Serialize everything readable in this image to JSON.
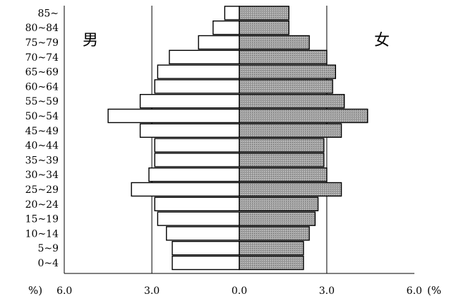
{
  "chart_data": {
    "type": "bar",
    "subtype": "population-pyramid",
    "categories": [
      "85~",
      "80~84",
      "75~79",
      "70~74",
      "65~69",
      "60~64",
      "55~59",
      "50~54",
      "45~49",
      "40~44",
      "35~39",
      "30~34",
      "25~29",
      "20~24",
      "15~19",
      "10~14",
      "5~9",
      "0~4"
    ],
    "series": [
      {
        "name": "男",
        "values": [
          0.5,
          0.9,
          1.4,
          2.4,
          2.8,
          2.9,
          3.4,
          4.5,
          3.4,
          2.9,
          2.9,
          3.1,
          3.7,
          2.9,
          2.8,
          2.5,
          2.3,
          2.3
        ]
      },
      {
        "name": "女",
        "values": [
          1.7,
          1.7,
          2.4,
          3.0,
          3.3,
          3.2,
          3.6,
          4.4,
          3.5,
          2.9,
          2.9,
          3.0,
          3.5,
          2.7,
          2.6,
          2.4,
          2.2,
          2.2
        ]
      }
    ],
    "xlim": [
      -6.0,
      6.0
    ],
    "xticks": [
      "6.0",
      "3.0",
      "0.0",
      "3.0",
      "6.0"
    ],
    "x_unit_left": "%)",
    "x_unit_right": "(%",
    "gridlines": true,
    "colors": {
      "male_fill": "#ffffff",
      "female_fill": "#9a9a9a",
      "stroke": "#000000",
      "grid": "#000000"
    }
  }
}
